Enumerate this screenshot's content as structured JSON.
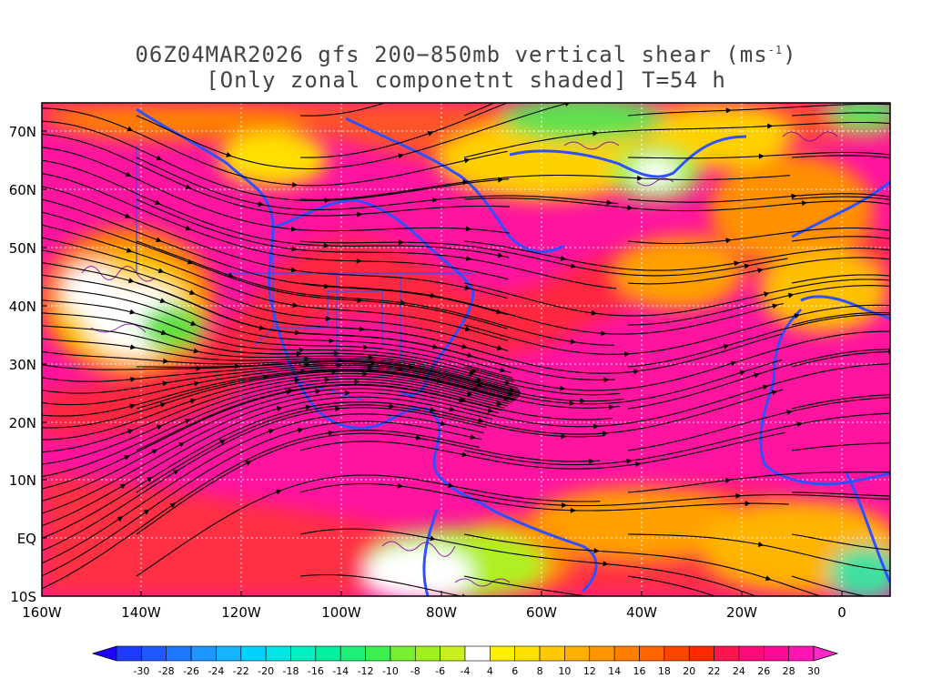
{
  "title": {
    "line1_prefix": "06Z04MAR2026 gfs 200−850mb vertical shear (ms",
    "line1_sup": "-1",
    "line1_suffix": ")",
    "line2": "[Only zonal componetnt shaded] T=54 h"
  },
  "map": {
    "lon_range": [
      -160,
      10
    ],
    "lat_range": [
      -10,
      75
    ],
    "lat_ticks": [
      "70N",
      "60N",
      "50N",
      "40N",
      "30N",
      "20N",
      "10N",
      "EQ",
      "10S"
    ],
    "lon_ticks": [
      "160W",
      "140W",
      "120W",
      "100W",
      "80W",
      "60W",
      "40W",
      "20W",
      "0"
    ]
  },
  "colorbar": {
    "labels": [
      "-30",
      "-28",
      "-26",
      "-24",
      "-22",
      "-20",
      "-18",
      "-16",
      "-14",
      "-12",
      "-10",
      "-8",
      "-6",
      "-4",
      "4",
      "6",
      "8",
      "10",
      "12",
      "14",
      "16",
      "18",
      "20",
      "22",
      "24",
      "26",
      "28",
      "30"
    ],
    "colors": [
      "#1e3cff",
      "#1e5aff",
      "#1e78ff",
      "#1e96ff",
      "#14b4ff",
      "#00d2ff",
      "#00e6e6",
      "#00f0c0",
      "#00f0a0",
      "#1ef078",
      "#3cf050",
      "#78f032",
      "#a0f020",
      "#c8f01e",
      "#ffffff",
      "#fff000",
      "#ffe100",
      "#ffc800",
      "#ffaf00",
      "#ff9600",
      "#ff7d00",
      "#ff6400",
      "#ff4600",
      "#ff2800",
      "#ff1450",
      "#ff0a78",
      "#ff0a96",
      "#ff14b4"
    ],
    "arrow_left_color": "#1e00ff",
    "arrow_right_color": "#ff28c8"
  },
  "colors": {
    "land_outline": "#3050ff",
    "contour": "#8000a0",
    "shear_peak": "#ff14a0"
  }
}
